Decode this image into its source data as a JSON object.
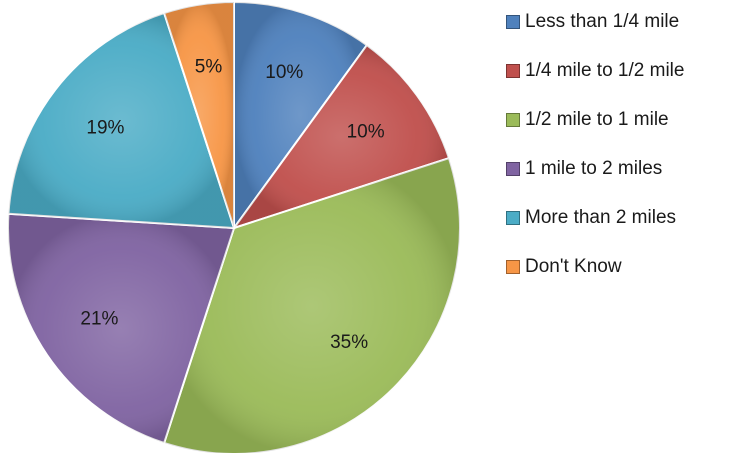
{
  "chart_data": {
    "type": "pie",
    "title": "",
    "categories": [
      "Less than 1/4 mile",
      "1/4 mile to 1/2 mile",
      "1/2 mile to 1 mile",
      "1 mile to 2 miles",
      "More than 2 miles",
      "Don't Know"
    ],
    "values": [
      10,
      10,
      35,
      21,
      19,
      5
    ],
    "labels": [
      "10%",
      "10%",
      "35%",
      "21%",
      "19%",
      "5%"
    ],
    "unit": "%",
    "colors": [
      "#4f81bd",
      "#c0504d",
      "#9bbb59",
      "#8064a2",
      "#4bacc6",
      "#f79646"
    ],
    "start_angle_deg": 0,
    "direction": "clockwise",
    "legend_position": "right"
  }
}
